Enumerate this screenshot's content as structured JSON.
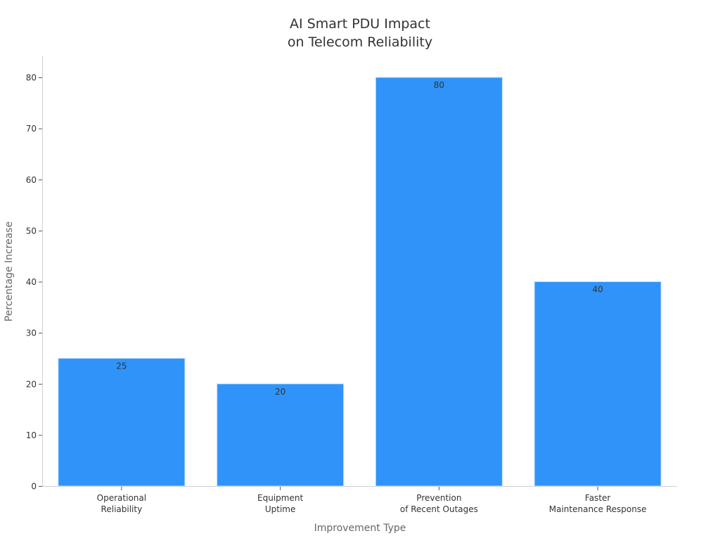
{
  "chart_data": {
    "type": "bar",
    "title": [
      "AI Smart PDU Impact",
      "on Telecom Reliability"
    ],
    "xlabel": "Improvement Type",
    "ylabel": "Percentage Increase",
    "categories": [
      [
        "Operational",
        "Reliability"
      ],
      [
        "Equipment",
        "Uptime"
      ],
      [
        "Prevention",
        "of Recent Outages"
      ],
      [
        "Faster",
        "Maintenance Response"
      ]
    ],
    "values": [
      25,
      20,
      80,
      40
    ],
    "data_labels": [
      "25",
      "20",
      "80",
      "40"
    ],
    "ylim": [
      0,
      84
    ],
    "yticks": [
      0,
      10,
      20,
      30,
      40,
      50,
      60,
      70,
      80
    ],
    "grid": false,
    "bar_color": "#2F93F9",
    "bar_edge_color": "#BFDDF9"
  }
}
